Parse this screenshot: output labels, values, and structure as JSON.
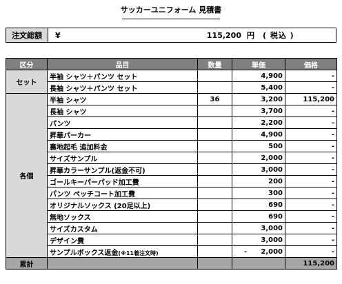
{
  "title": "サッカーユニフォーム 見積書",
  "total": {
    "label": "注文総額",
    "currency": "¥",
    "amount": "115,200",
    "unit": "円",
    "tax": "( 税込 )"
  },
  "headers": [
    "区分",
    "品目",
    "数量",
    "単価",
    "価格"
  ],
  "set_category": "セット",
  "set_rows": [
    {
      "item": "半袖 シャツ＋パンツ セット",
      "qty": "",
      "unit_price": "4,900",
      "price": "-"
    },
    {
      "item": "長袖 シャツ＋パンツ セット",
      "qty": "",
      "unit_price": "5,400",
      "price": "-"
    }
  ],
  "single_category": "各個",
  "single_rows": [
    {
      "item": "半袖 シャツ",
      "qty": "36",
      "unit_price": "3,200",
      "price": "115,200"
    },
    {
      "item": "長袖 シャツ",
      "qty": "",
      "unit_price": "3,700",
      "price": "-"
    },
    {
      "item": "パンツ",
      "qty": "",
      "unit_price": "2,200",
      "price": "-"
    },
    {
      "item": "昇華パーカー",
      "qty": "",
      "unit_price": "4,900",
      "price": "-"
    },
    {
      "item": "裏地起毛 追加料金",
      "qty": "",
      "unit_price": "500",
      "price": "-"
    },
    {
      "item": "サイズサンプル",
      "qty": "",
      "unit_price": "2,000",
      "price": "-"
    },
    {
      "item": "昇華カラーサンプル(返金不可)",
      "qty": "",
      "unit_price": "3,000",
      "price": "-"
    },
    {
      "item": "ゴールキーパーパッド加工費",
      "qty": "",
      "unit_price": "200",
      "price": "-"
    },
    {
      "item": "パンツ ペッチコート加工費",
      "qty": "",
      "unit_price": "300",
      "price": "-"
    },
    {
      "item": "オリジナルソックス (20足以上)",
      "qty": "",
      "unit_price": "690",
      "price": "-"
    },
    {
      "item": "無地ソックス",
      "qty": "",
      "unit_price": "690",
      "price": "-"
    },
    {
      "item": "サイズカスタム",
      "qty": "",
      "unit_price": "3,000",
      "price": "-"
    },
    {
      "item": "デザイン費",
      "qty": "",
      "unit_price": "3,000",
      "price": "-"
    },
    {
      "item": "サンプルボックス返金",
      "item_note": "(※11着注文時)",
      "qty": "",
      "unit_price_sign": "-",
      "unit_price": "2,000",
      "price": "-"
    }
  ],
  "footer": {
    "label": "累計",
    "total": "115,200"
  }
}
